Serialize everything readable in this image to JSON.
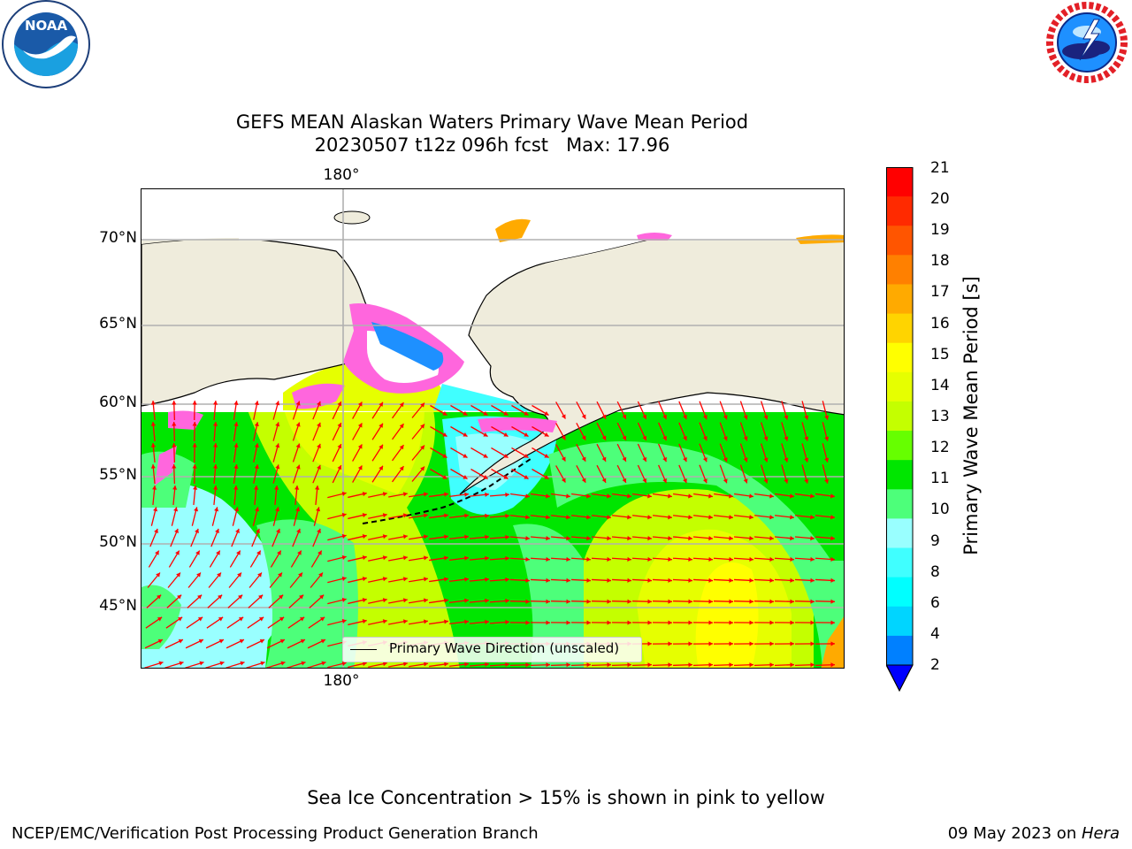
{
  "title_line1": "GEFS MEAN Alaskan Waters Primary Wave Mean Period",
  "title_line2": "20230507 t12z 096h fcst   Max: 17.96",
  "lon_labels": {
    "top": "180°",
    "bottom": "180°"
  },
  "lat_labels": [
    "70°N",
    "65°N",
    "60°N",
    "55°N",
    "50°N",
    "45°N"
  ],
  "legend": {
    "label": "Primary Wave Direction (unscaled)",
    "line_color": "#000000"
  },
  "colorbar": {
    "label": "Primary Wave Mean Period [s]",
    "ticks": [
      "21",
      "20",
      "19",
      "18",
      "17",
      "16",
      "15",
      "14",
      "13",
      "12",
      "11",
      "10",
      "9",
      "8",
      "6",
      "4",
      "2"
    ],
    "colors_top_to_bottom": [
      "#ff0000",
      "#ff2a00",
      "#ff5500",
      "#ff8000",
      "#ffaa00",
      "#ffd400",
      "#ffff00",
      "#e6ff00",
      "#c4ff00",
      "#66ff00",
      "#00e600",
      "#4dff7a",
      "#99ffff",
      "#40ffff",
      "#00ffff",
      "#00d5ff",
      "#0080ff"
    ],
    "extend_color": "#0000ff"
  },
  "map_colors": {
    "land": "#efecdc",
    "ice": "#ff66dd",
    "arrow": "#ff0000",
    "grid": "#b0b0b0"
  },
  "logos": {
    "left": "NOAA",
    "right": "NATIONAL WEATHER SERVICE"
  },
  "ice_note": "Sea Ice Concentration > 15% is shown in pink to yellow",
  "footer_left": "NCEP/EMC/Verification Post Processing Product Generation Branch",
  "footer_right_prefix": "09 May 2023 on ",
  "footer_right_italic": "Hera"
}
